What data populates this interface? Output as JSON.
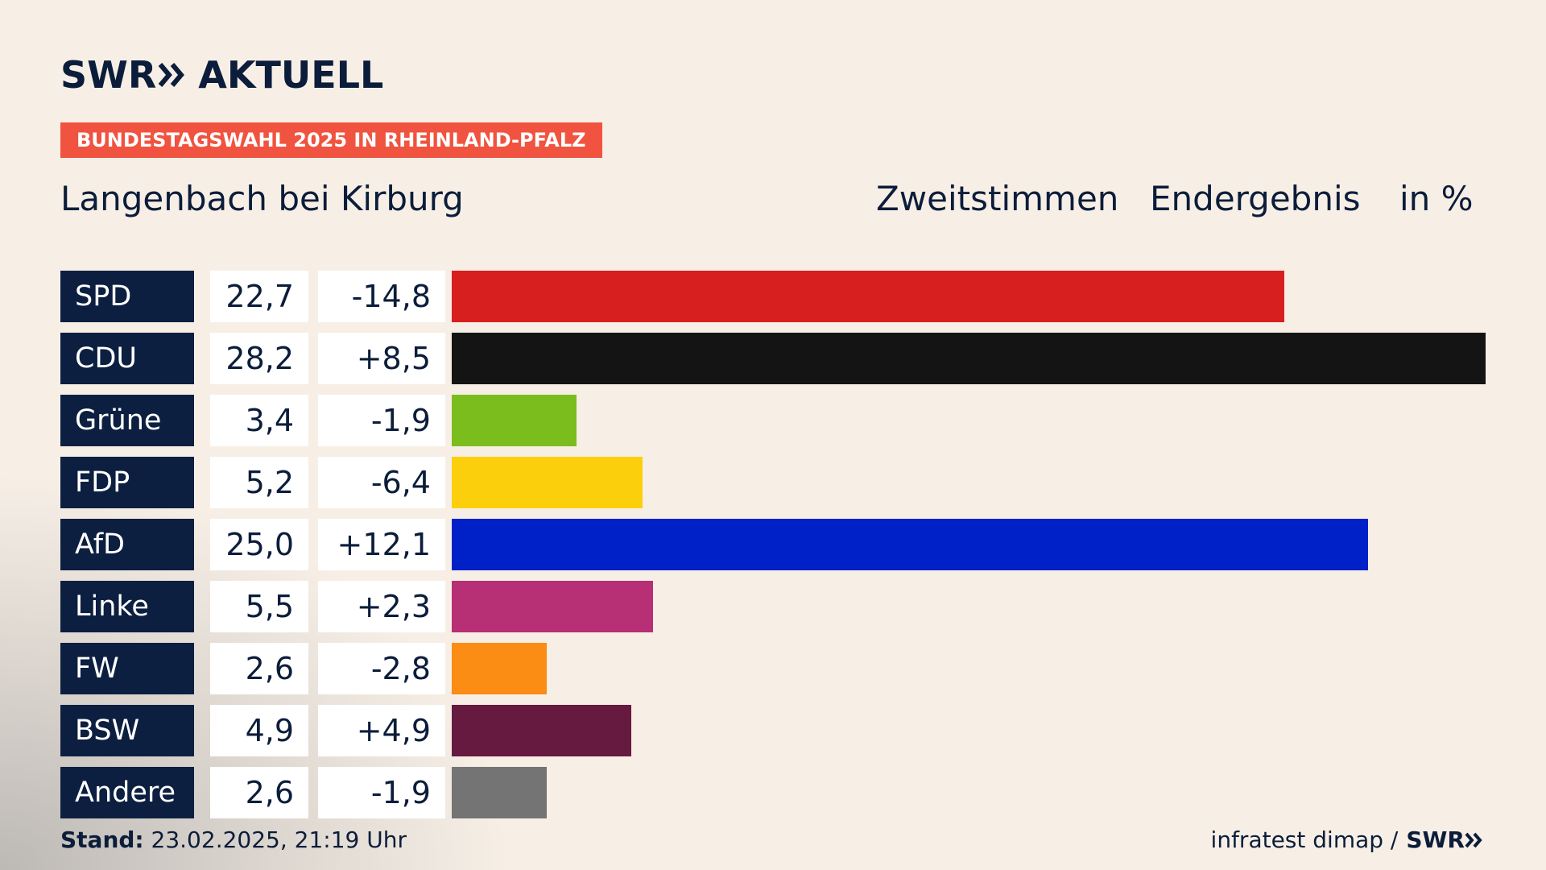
{
  "brand": {
    "logo_left": "SWR",
    "logo_right": "AKTUELL",
    "footer_logo": "SWR"
  },
  "badge": "BUNDESTAGSWAHL 2025 IN RHEINLAND-PFALZ",
  "place": "Langenbach bei Kirburg",
  "header": {
    "col1": "Zweitstimmen",
    "col2": "Endergebnis",
    "col3": "in %"
  },
  "footer": {
    "stand_label": "Stand:",
    "stand_value": "23.02.2025, 21:19 Uhr",
    "source": "infratest dimap /"
  },
  "chart_data": {
    "type": "bar",
    "categories": [
      "SPD",
      "CDU",
      "Grüne",
      "FDP",
      "AfD",
      "Linke",
      "FW",
      "BSW",
      "Andere"
    ],
    "values": [
      22.7,
      28.2,
      3.4,
      5.2,
      25.0,
      5.5,
      2.6,
      4.9,
      2.6
    ],
    "value_labels": [
      "22,7",
      "28,2",
      "3,4",
      "5,2",
      "25,0",
      "5,5",
      "2,6",
      "4,9",
      "2,6"
    ],
    "diff_labels": [
      "-14,8",
      "+8,5",
      "-1,9",
      "-6,4",
      "+12,1",
      "+2,3",
      "-2,8",
      "+4,9",
      "-1,9"
    ],
    "colors": [
      "#d81f1f",
      "#141414",
      "#7abd1c",
      "#fccf0c",
      "#0021c7",
      "#b72f75",
      "#fb8c14",
      "#671a3f",
      "#747474"
    ],
    "xlim": [
      0,
      28.2
    ]
  }
}
